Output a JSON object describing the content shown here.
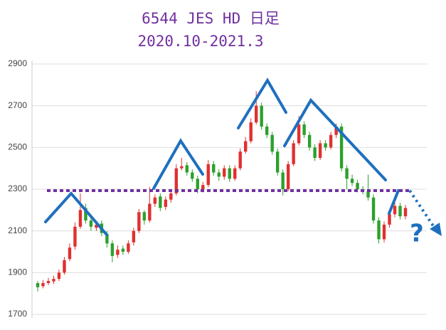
{
  "chart_data": {
    "type": "candlestick",
    "title": "6544 JES HD 日足",
    "subtitle": "2020.10-2021.3",
    "annotation": "?",
    "up_color": "#e03030",
    "down_color": "#2ca02c",
    "ylim": [
      1700,
      2900
    ],
    "yticks": [
      1700,
      1900,
      2100,
      2300,
      2500,
      2700,
      2900
    ],
    "grid": true,
    "open": [
      1850,
      1835,
      1850,
      1858,
      1870,
      1900,
      1965,
      2025,
      2120,
      2210,
      2150,
      2115,
      2135,
      2085,
      2040,
      1985,
      2015,
      2000,
      2045,
      2100,
      2190,
      2150,
      2230,
      2265,
      2215,
      2250,
      2280,
      2400,
      2415,
      2380,
      2350,
      2300,
      2320,
      2420,
      2380,
      2360,
      2400,
      2350,
      2400,
      2480,
      2530,
      2620,
      2700,
      2600,
      2560,
      2480,
      2380,
      2300,
      2420,
      2520,
      2610,
      2560,
      2500,
      2450,
      2520,
      2500,
      2560,
      2600,
      2400,
      2350,
      2330,
      2300,
      2290,
      2260,
      2150,
      2060,
      2130,
      2180,
      2220,
      2170
    ],
    "high": [
      1860,
      1865,
      1875,
      1885,
      1915,
      1975,
      2040,
      2140,
      2280,
      2230,
      2165,
      2150,
      2150,
      2100,
      2055,
      2030,
      2030,
      2055,
      2115,
      2205,
      2200,
      2310,
      2275,
      2280,
      2265,
      2295,
      2420,
      2450,
      2430,
      2395,
      2365,
      2335,
      2440,
      2435,
      2395,
      2415,
      2415,
      2415,
      2495,
      2550,
      2640,
      2770,
      2715,
      2615,
      2575,
      2495,
      2395,
      2435,
      2535,
      2650,
      2625,
      2575,
      2515,
      2535,
      2535,
      2575,
      2615,
      2615,
      2415,
      2370,
      2345,
      2315,
      2370,
      2275,
      2165,
      2145,
      2200,
      2240,
      2235,
      2225
    ],
    "low": [
      1810,
      1825,
      1840,
      1845,
      1860,
      1890,
      1955,
      2010,
      2110,
      2135,
      2100,
      2100,
      2075,
      2020,
      1950,
      1970,
      1985,
      1990,
      2030,
      2090,
      2130,
      2140,
      2215,
      2195,
      2200,
      2235,
      2270,
      2390,
      2365,
      2335,
      2280,
      2285,
      2310,
      2365,
      2340,
      2345,
      2335,
      2340,
      2390,
      2470,
      2520,
      2610,
      2585,
      2545,
      2465,
      2365,
      2270,
      2290,
      2410,
      2510,
      2545,
      2485,
      2435,
      2440,
      2485,
      2490,
      2545,
      2385,
      2300,
      2315,
      2285,
      2275,
      2245,
      2135,
      2040,
      2045,
      2115,
      2165,
      2155,
      2155
    ],
    "close": [
      1830,
      1850,
      1860,
      1870,
      1900,
      1960,
      2020,
      2120,
      2200,
      2150,
      2120,
      2130,
      2090,
      2040,
      1980,
      2010,
      2000,
      2040,
      2100,
      2190,
      2150,
      2230,
      2260,
      2210,
      2250,
      2280,
      2400,
      2410,
      2380,
      2350,
      2300,
      2320,
      2420,
      2380,
      2360,
      2400,
      2350,
      2400,
      2480,
      2530,
      2620,
      2700,
      2600,
      2560,
      2480,
      2380,
      2300,
      2420,
      2520,
      2610,
      2560,
      2500,
      2450,
      2520,
      2500,
      2560,
      2600,
      2400,
      2350,
      2330,
      2300,
      2290,
      2260,
      2150,
      2060,
      2130,
      2180,
      2220,
      2170,
      2210
    ]
  }
}
